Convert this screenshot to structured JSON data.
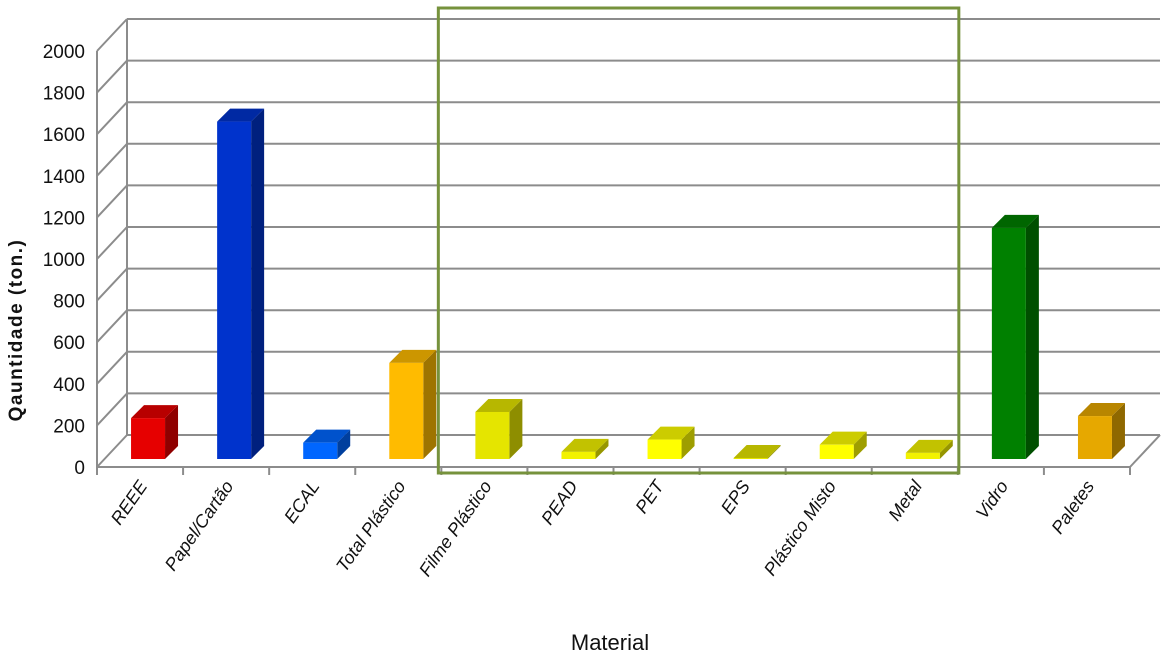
{
  "chart_data": {
    "type": "bar",
    "xlabel": "Material",
    "ylabel": "Qauntidade (ton.)",
    "ylim": [
      0,
      2000
    ],
    "yticks": [
      0,
      200,
      400,
      600,
      800,
      1000,
      1200,
      1400,
      1600,
      1800,
      2000
    ],
    "grid": true,
    "three_d": true,
    "highlight_box": {
      "from": "Filme Plástico",
      "to": "Metal",
      "color": "#76923c"
    },
    "categories": [
      "REEE",
      "Papel/Cartão",
      "ECAL",
      "Total Plástico",
      "Filme Plástico",
      "PEAD",
      "PET",
      "EPS",
      "Plástico Misto",
      "Metal",
      "Vidro",
      "Paletes"
    ],
    "values": [
      200,
      1650,
      80,
      470,
      230,
      35,
      95,
      5,
      70,
      30,
      1130,
      210
    ],
    "colors": [
      "#e60000",
      "#0033cc",
      "#0066ff",
      "#ffbb00",
      "#e5e500",
      "#f2f200",
      "#ffff00",
      "#e5e500",
      "#ffff00",
      "#f2f200",
      "#008000",
      "#e6a800"
    ]
  }
}
